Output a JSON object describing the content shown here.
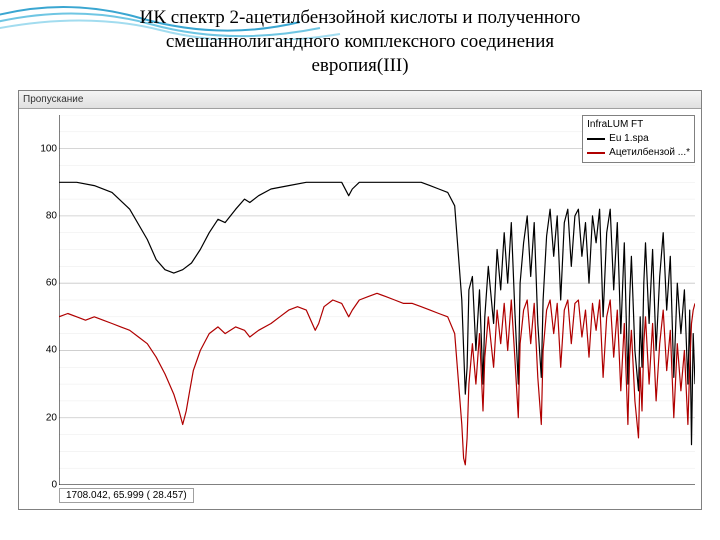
{
  "title_lines": [
    "ИК спектр 2-ацетилбензойной кислоты и полученного",
    "смешаннолигандного комплексного соединения",
    "европия(III)"
  ],
  "decorative_wave": {
    "colors": [
      "#3aa6d1",
      "#6fc6e3",
      "#a2dcef"
    ]
  },
  "chart": {
    "type": "line",
    "header_label": "Пропускание",
    "xlim": [
      4000,
      400
    ],
    "ylim": [
      0,
      110
    ],
    "y_ticks": [
      0,
      20,
      40,
      60,
      80,
      100
    ],
    "grid_color": "#c8c8c8",
    "minor_grid_color": "#e6e6e6",
    "background_color": "#ffffff",
    "axis_color": "#000000",
    "tick_font_size": 10,
    "legend": {
      "title": "InfraLUM FT",
      "items": [
        {
          "label": "Eu 1.spa",
          "color": "#000000"
        },
        {
          "label": "Ацетилбензой ...*",
          "color": "#b00000"
        }
      ]
    },
    "coord_readout": "1708.042,   65.999 (  28.457)",
    "series": [
      {
        "name": "Eu_complex",
        "color": "#000000",
        "line_width": 1.2,
        "xy": [
          [
            4000,
            90
          ],
          [
            3900,
            90
          ],
          [
            3800,
            89
          ],
          [
            3700,
            87
          ],
          [
            3600,
            82
          ],
          [
            3500,
            73
          ],
          [
            3450,
            67
          ],
          [
            3400,
            64
          ],
          [
            3350,
            63
          ],
          [
            3300,
            64
          ],
          [
            3250,
            66
          ],
          [
            3200,
            70
          ],
          [
            3150,
            75
          ],
          [
            3100,
            79
          ],
          [
            3060,
            78
          ],
          [
            3000,
            82
          ],
          [
            2950,
            85
          ],
          [
            2920,
            84
          ],
          [
            2870,
            86
          ],
          [
            2800,
            88
          ],
          [
            2700,
            89
          ],
          [
            2600,
            90
          ],
          [
            2500,
            90
          ],
          [
            2400,
            90
          ],
          [
            2360,
            86
          ],
          [
            2340,
            88
          ],
          [
            2300,
            90
          ],
          [
            2200,
            90
          ],
          [
            2100,
            90
          ],
          [
            2000,
            90
          ],
          [
            1950,
            90
          ],
          [
            1900,
            89
          ],
          [
            1850,
            88
          ],
          [
            1800,
            87
          ],
          [
            1760,
            83
          ],
          [
            1720,
            55
          ],
          [
            1700,
            27
          ],
          [
            1690,
            35
          ],
          [
            1680,
            58
          ],
          [
            1660,
            62
          ],
          [
            1640,
            40
          ],
          [
            1620,
            58
          ],
          [
            1600,
            30
          ],
          [
            1590,
            50
          ],
          [
            1570,
            65
          ],
          [
            1540,
            48
          ],
          [
            1520,
            70
          ],
          [
            1500,
            58
          ],
          [
            1480,
            75
          ],
          [
            1460,
            60
          ],
          [
            1440,
            78
          ],
          [
            1420,
            52
          ],
          [
            1400,
            30
          ],
          [
            1390,
            60
          ],
          [
            1370,
            72
          ],
          [
            1350,
            80
          ],
          [
            1330,
            62
          ],
          [
            1310,
            78
          ],
          [
            1290,
            48
          ],
          [
            1270,
            32
          ],
          [
            1260,
            55
          ],
          [
            1240,
            74
          ],
          [
            1220,
            82
          ],
          [
            1200,
            68
          ],
          [
            1180,
            80
          ],
          [
            1160,
            55
          ],
          [
            1140,
            78
          ],
          [
            1120,
            82
          ],
          [
            1100,
            65
          ],
          [
            1080,
            80
          ],
          [
            1060,
            82
          ],
          [
            1040,
            68
          ],
          [
            1020,
            78
          ],
          [
            1000,
            60
          ],
          [
            980,
            80
          ],
          [
            960,
            72
          ],
          [
            940,
            82
          ],
          [
            920,
            50
          ],
          [
            900,
            75
          ],
          [
            880,
            82
          ],
          [
            860,
            58
          ],
          [
            840,
            78
          ],
          [
            820,
            45
          ],
          [
            800,
            72
          ],
          [
            780,
            30
          ],
          [
            770,
            55
          ],
          [
            760,
            68
          ],
          [
            740,
            40
          ],
          [
            720,
            28
          ],
          [
            710,
            50
          ],
          [
            700,
            35
          ],
          [
            690,
            60
          ],
          [
            680,
            72
          ],
          [
            660,
            48
          ],
          [
            640,
            70
          ],
          [
            620,
            40
          ],
          [
            600,
            62
          ],
          [
            580,
            75
          ],
          [
            560,
            52
          ],
          [
            540,
            68
          ],
          [
            520,
            32
          ],
          [
            500,
            60
          ],
          [
            480,
            45
          ],
          [
            460,
            58
          ],
          [
            440,
            30
          ],
          [
            430,
            52
          ],
          [
            420,
            12
          ],
          [
            410,
            45
          ],
          [
            400,
            30
          ]
        ]
      },
      {
        "name": "acetylbenzoic_acid",
        "color": "#b00000",
        "line_width": 1.2,
        "xy": [
          [
            4000,
            50
          ],
          [
            3950,
            51
          ],
          [
            3900,
            50
          ],
          [
            3850,
            49
          ],
          [
            3800,
            50
          ],
          [
            3750,
            49
          ],
          [
            3700,
            48
          ],
          [
            3650,
            47
          ],
          [
            3600,
            46
          ],
          [
            3550,
            44
          ],
          [
            3500,
            42
          ],
          [
            3450,
            38
          ],
          [
            3400,
            33
          ],
          [
            3350,
            27
          ],
          [
            3320,
            22
          ],
          [
            3300,
            18
          ],
          [
            3280,
            22
          ],
          [
            3260,
            28
          ],
          [
            3240,
            34
          ],
          [
            3200,
            40
          ],
          [
            3150,
            45
          ],
          [
            3100,
            47
          ],
          [
            3060,
            45
          ],
          [
            3000,
            47
          ],
          [
            2950,
            46
          ],
          [
            2920,
            44
          ],
          [
            2870,
            46
          ],
          [
            2800,
            48
          ],
          [
            2750,
            50
          ],
          [
            2700,
            52
          ],
          [
            2650,
            53
          ],
          [
            2600,
            52
          ],
          [
            2550,
            46
          ],
          [
            2530,
            48
          ],
          [
            2500,
            53
          ],
          [
            2450,
            55
          ],
          [
            2400,
            54
          ],
          [
            2360,
            50
          ],
          [
            2340,
            52
          ],
          [
            2300,
            55
          ],
          [
            2250,
            56
          ],
          [
            2200,
            57
          ],
          [
            2150,
            56
          ],
          [
            2100,
            55
          ],
          [
            2050,
            54
          ],
          [
            2000,
            54
          ],
          [
            1950,
            53
          ],
          [
            1900,
            52
          ],
          [
            1850,
            51
          ],
          [
            1800,
            50
          ],
          [
            1760,
            45
          ],
          [
            1720,
            18
          ],
          [
            1710,
            8
          ],
          [
            1700,
            6
          ],
          [
            1690,
            14
          ],
          [
            1680,
            30
          ],
          [
            1660,
            42
          ],
          [
            1640,
            30
          ],
          [
            1620,
            45
          ],
          [
            1600,
            22
          ],
          [
            1590,
            38
          ],
          [
            1570,
            50
          ],
          [
            1540,
            35
          ],
          [
            1520,
            52
          ],
          [
            1500,
            42
          ],
          [
            1480,
            54
          ],
          [
            1460,
            40
          ],
          [
            1440,
            55
          ],
          [
            1420,
            38
          ],
          [
            1400,
            20
          ],
          [
            1390,
            42
          ],
          [
            1370,
            52
          ],
          [
            1350,
            55
          ],
          [
            1330,
            42
          ],
          [
            1310,
            54
          ],
          [
            1290,
            32
          ],
          [
            1270,
            18
          ],
          [
            1260,
            40
          ],
          [
            1240,
            52
          ],
          [
            1220,
            55
          ],
          [
            1200,
            45
          ],
          [
            1180,
            54
          ],
          [
            1160,
            35
          ],
          [
            1140,
            52
          ],
          [
            1120,
            55
          ],
          [
            1100,
            42
          ],
          [
            1080,
            54
          ],
          [
            1060,
            55
          ],
          [
            1040,
            44
          ],
          [
            1020,
            52
          ],
          [
            1000,
            38
          ],
          [
            980,
            54
          ],
          [
            960,
            46
          ],
          [
            940,
            55
          ],
          [
            920,
            32
          ],
          [
            900,
            50
          ],
          [
            880,
            55
          ],
          [
            860,
            38
          ],
          [
            840,
            52
          ],
          [
            820,
            28
          ],
          [
            800,
            48
          ],
          [
            780,
            18
          ],
          [
            770,
            38
          ],
          [
            760,
            46
          ],
          [
            740,
            25
          ],
          [
            720,
            14
          ],
          [
            710,
            35
          ],
          [
            700,
            22
          ],
          [
            690,
            42
          ],
          [
            680,
            50
          ],
          [
            660,
            30
          ],
          [
            640,
            48
          ],
          [
            620,
            25
          ],
          [
            600,
            42
          ],
          [
            580,
            52
          ],
          [
            560,
            34
          ],
          [
            540,
            46
          ],
          [
            520,
            20
          ],
          [
            500,
            42
          ],
          [
            480,
            28
          ],
          [
            460,
            40
          ],
          [
            440,
            18
          ],
          [
            430,
            35
          ],
          [
            420,
            48
          ],
          [
            410,
            52
          ],
          [
            400,
            54
          ]
        ]
      }
    ]
  }
}
